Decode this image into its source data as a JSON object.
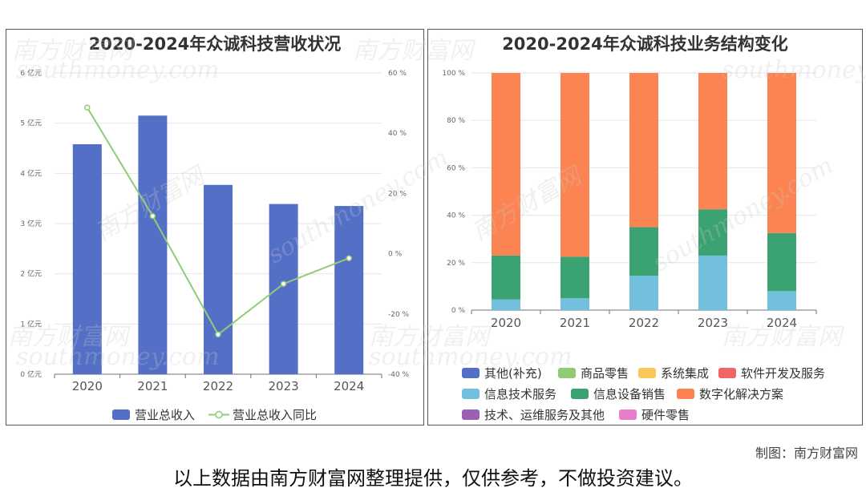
{
  "credit": "制图：南方财富网",
  "footer_note": "以上数据由南方财富网整理提供，仅供参考，不做投资建议。",
  "watermark": {
    "cn": "南方财富网",
    "en": "southmoney.com"
  },
  "chart_data": [
    {
      "type": "bar",
      "title": "2020-2024年众诚科技营收状况",
      "categories": [
        "2020",
        "2021",
        "2022",
        "2023",
        "2024"
      ],
      "left_axis": {
        "ticks": [
          "0 亿元",
          "1 亿元",
          "2 亿元",
          "3 亿元",
          "4 亿元",
          "5 亿元",
          "6 亿元"
        ],
        "ylim": [
          0,
          6
        ]
      },
      "right_axis": {
        "ticks": [
          "-40 %",
          "-20 %",
          "0 %",
          "20 %",
          "40 %",
          "60 %"
        ],
        "ylim": [
          -40,
          60
        ]
      },
      "series": [
        {
          "name": "营业总收入",
          "type": "bar",
          "axis": "left",
          "color": "#5470c6",
          "values": [
            4.58,
            5.15,
            3.77,
            3.39,
            3.35
          ]
        },
        {
          "name": "营业总收入同比",
          "type": "line",
          "axis": "right",
          "color": "#91cc75",
          "values": [
            48.5,
            12.5,
            -26.8,
            -10.0,
            -1.5
          ]
        }
      ],
      "grid": true,
      "legend": "bottom"
    },
    {
      "type": "bar",
      "stacked": true,
      "title": "2020-2024年众诚科技业务结构变化",
      "categories": [
        "2020",
        "2021",
        "2022",
        "2023",
        "2024"
      ],
      "y_axis": {
        "ticks": [
          "0 %",
          "20 %",
          "40 %",
          "60 %",
          "80 %",
          "100 %"
        ],
        "ylim": [
          0,
          100
        ]
      },
      "series": [
        {
          "name": "其他(补充)",
          "color": "#5470c6",
          "values": [
            0,
            0,
            0,
            0,
            0
          ]
        },
        {
          "name": "商品零售",
          "color": "#91cc75",
          "values": [
            0,
            0,
            0,
            0,
            0
          ]
        },
        {
          "name": "系统集成",
          "color": "#fac858",
          "values": [
            0,
            0,
            0,
            0,
            0
          ]
        },
        {
          "name": "软件开发及服务",
          "color": "#ee6666",
          "values": [
            0,
            0,
            0,
            0,
            0
          ]
        },
        {
          "name": "信息技术服务",
          "color": "#73c0de",
          "values": [
            4.5,
            5,
            14.5,
            23,
            8
          ]
        },
        {
          "name": "信息设备销售",
          "color": "#3ba272",
          "values": [
            18.5,
            17.5,
            20.5,
            19.5,
            24.5
          ]
        },
        {
          "name": "数字化解决方案",
          "color": "#fc8452",
          "values": [
            77,
            77.5,
            65,
            57.5,
            67.5
          ]
        },
        {
          "name": "技术、运维服务及其他",
          "color": "#9a60b4",
          "values": [
            0,
            0,
            0,
            0,
            0
          ]
        },
        {
          "name": "硬件零售",
          "color": "#ea7ccc",
          "values": [
            0,
            0,
            0,
            0,
            0
          ]
        }
      ],
      "grid": true,
      "legend": "bottom"
    }
  ]
}
